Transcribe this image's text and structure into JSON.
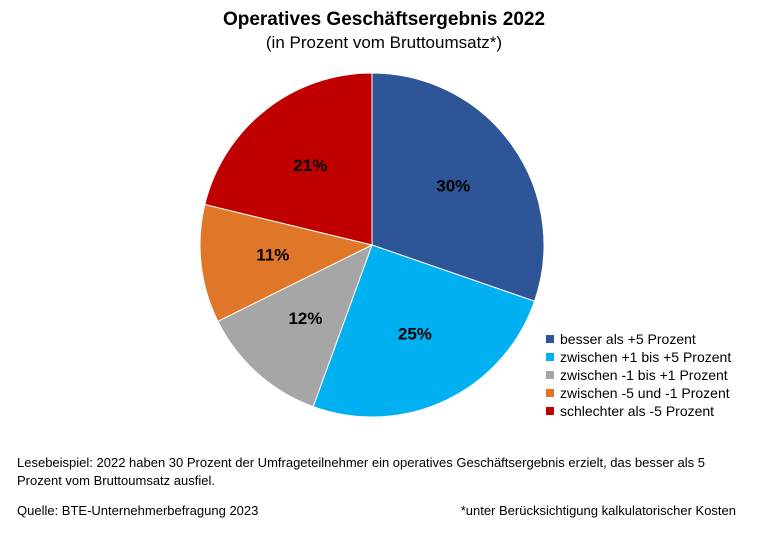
{
  "chart_data": {
    "type": "pie",
    "title": "Operatives Geschäftsergebnis 2022",
    "subtitle": "(in Prozent vom Bruttoumsatz*)",
    "slices": [
      {
        "label": "besser als +5 Prozent",
        "value": 30,
        "display": "30%",
        "color": "#2E5597"
      },
      {
        "label": "zwischen +1 bis +5 Prozent",
        "value": 25,
        "display": "25%",
        "color": "#00B0F0"
      },
      {
        "label": "zwischen -1 bis +1 Prozent",
        "value": 12,
        "display": "12%",
        "color": "#A6A6A6"
      },
      {
        "label": "zwischen -5 und -1 Prozent",
        "value": 11,
        "display": "11%",
        "color": "#E07728"
      },
      {
        "label": "schlechter als -5 Prozent",
        "value": 21,
        "display": "21%",
        "color": "#C00000"
      }
    ],
    "legend_position": "bottom-right"
  },
  "note": "Lesebeispiel: 2022 haben 30 Prozent der Umfrageteilnehmer ein operatives Geschäftsergebnis erzielt, das besser als 5 Prozent vom Bruttoumsatz ausfiel.",
  "source": "Quelle: BTE-Unternehmerbefragung 2023",
  "footnote": "*unter Berücksichtigung kalkulatorischer Kosten"
}
